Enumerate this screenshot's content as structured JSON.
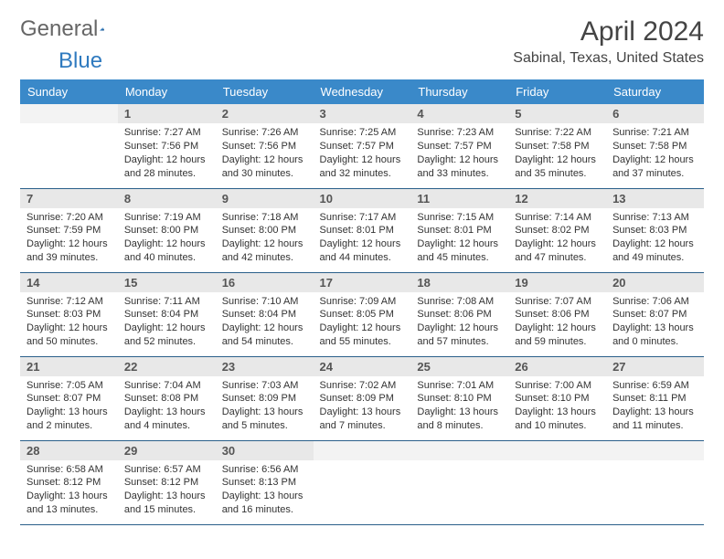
{
  "logo": {
    "text_left": "General",
    "text_right": "Blue"
  },
  "header": {
    "month_title": "April 2024",
    "location": "Sabinal, Texas, United States"
  },
  "colors": {
    "header_bg": "#3a89c9",
    "row_border": "#2a5f8a",
    "daynum_bg": "#e8e8e8",
    "blue": "#2f7abf"
  },
  "weekdays": [
    "Sunday",
    "Monday",
    "Tuesday",
    "Wednesday",
    "Thursday",
    "Friday",
    "Saturday"
  ],
  "start_offset": 1,
  "days": [
    {
      "n": 1,
      "sr": "7:27 AM",
      "ss": "7:56 PM",
      "dl": "12 hours and 28 minutes."
    },
    {
      "n": 2,
      "sr": "7:26 AM",
      "ss": "7:56 PM",
      "dl": "12 hours and 30 minutes."
    },
    {
      "n": 3,
      "sr": "7:25 AM",
      "ss": "7:57 PM",
      "dl": "12 hours and 32 minutes."
    },
    {
      "n": 4,
      "sr": "7:23 AM",
      "ss": "7:57 PM",
      "dl": "12 hours and 33 minutes."
    },
    {
      "n": 5,
      "sr": "7:22 AM",
      "ss": "7:58 PM",
      "dl": "12 hours and 35 minutes."
    },
    {
      "n": 6,
      "sr": "7:21 AM",
      "ss": "7:58 PM",
      "dl": "12 hours and 37 minutes."
    },
    {
      "n": 7,
      "sr": "7:20 AM",
      "ss": "7:59 PM",
      "dl": "12 hours and 39 minutes."
    },
    {
      "n": 8,
      "sr": "7:19 AM",
      "ss": "8:00 PM",
      "dl": "12 hours and 40 minutes."
    },
    {
      "n": 9,
      "sr": "7:18 AM",
      "ss": "8:00 PM",
      "dl": "12 hours and 42 minutes."
    },
    {
      "n": 10,
      "sr": "7:17 AM",
      "ss": "8:01 PM",
      "dl": "12 hours and 44 minutes."
    },
    {
      "n": 11,
      "sr": "7:15 AM",
      "ss": "8:01 PM",
      "dl": "12 hours and 45 minutes."
    },
    {
      "n": 12,
      "sr": "7:14 AM",
      "ss": "8:02 PM",
      "dl": "12 hours and 47 minutes."
    },
    {
      "n": 13,
      "sr": "7:13 AM",
      "ss": "8:03 PM",
      "dl": "12 hours and 49 minutes."
    },
    {
      "n": 14,
      "sr": "7:12 AM",
      "ss": "8:03 PM",
      "dl": "12 hours and 50 minutes."
    },
    {
      "n": 15,
      "sr": "7:11 AM",
      "ss": "8:04 PM",
      "dl": "12 hours and 52 minutes."
    },
    {
      "n": 16,
      "sr": "7:10 AM",
      "ss": "8:04 PM",
      "dl": "12 hours and 54 minutes."
    },
    {
      "n": 17,
      "sr": "7:09 AM",
      "ss": "8:05 PM",
      "dl": "12 hours and 55 minutes."
    },
    {
      "n": 18,
      "sr": "7:08 AM",
      "ss": "8:06 PM",
      "dl": "12 hours and 57 minutes."
    },
    {
      "n": 19,
      "sr": "7:07 AM",
      "ss": "8:06 PM",
      "dl": "12 hours and 59 minutes."
    },
    {
      "n": 20,
      "sr": "7:06 AM",
      "ss": "8:07 PM",
      "dl": "13 hours and 0 minutes."
    },
    {
      "n": 21,
      "sr": "7:05 AM",
      "ss": "8:07 PM",
      "dl": "13 hours and 2 minutes."
    },
    {
      "n": 22,
      "sr": "7:04 AM",
      "ss": "8:08 PM",
      "dl": "13 hours and 4 minutes."
    },
    {
      "n": 23,
      "sr": "7:03 AM",
      "ss": "8:09 PM",
      "dl": "13 hours and 5 minutes."
    },
    {
      "n": 24,
      "sr": "7:02 AM",
      "ss": "8:09 PM",
      "dl": "13 hours and 7 minutes."
    },
    {
      "n": 25,
      "sr": "7:01 AM",
      "ss": "8:10 PM",
      "dl": "13 hours and 8 minutes."
    },
    {
      "n": 26,
      "sr": "7:00 AM",
      "ss": "8:10 PM",
      "dl": "13 hours and 10 minutes."
    },
    {
      "n": 27,
      "sr": "6:59 AM",
      "ss": "8:11 PM",
      "dl": "13 hours and 11 minutes."
    },
    {
      "n": 28,
      "sr": "6:58 AM",
      "ss": "8:12 PM",
      "dl": "13 hours and 13 minutes."
    },
    {
      "n": 29,
      "sr": "6:57 AM",
      "ss": "8:12 PM",
      "dl": "13 hours and 15 minutes."
    },
    {
      "n": 30,
      "sr": "6:56 AM",
      "ss": "8:13 PM",
      "dl": "13 hours and 16 minutes."
    }
  ],
  "labels": {
    "sunrise": "Sunrise:",
    "sunset": "Sunset:",
    "daylight": "Daylight:"
  }
}
